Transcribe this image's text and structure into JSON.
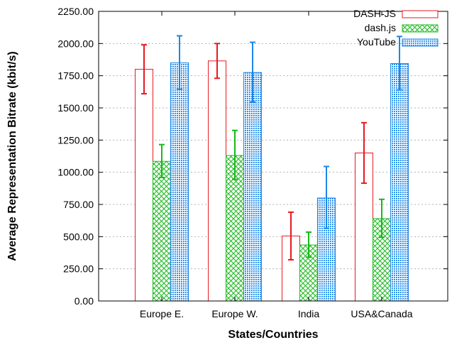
{
  "chart_data": {
    "type": "bar",
    "title": "",
    "xlabel": "States/Countries",
    "ylabel": "Average Representation Bitrate (kbit/s)",
    "ylim": [
      0,
      2250
    ],
    "yticks": [
      "0.00",
      "250.00",
      "500.00",
      "750.00",
      "1000.00",
      "1250.00",
      "1500.00",
      "1750.00",
      "2000.00",
      "2250.00"
    ],
    "categories": [
      "Europe E.",
      "Europe W.",
      "India",
      "USA&Canada"
    ],
    "grid": true,
    "legend_position": "top-right",
    "series": [
      {
        "name": "DASH-JS",
        "color": "#e8191f",
        "pattern": "none",
        "values": [
          1800,
          1865,
          505,
          1150
        ],
        "error_low": [
          1610,
          1730,
          320,
          915
        ],
        "error_high": [
          1990,
          2000,
          690,
          1385
        ]
      },
      {
        "name": "dash.js",
        "color": "#18b81a",
        "pattern": "crosshatch",
        "values": [
          1085,
          1130,
          435,
          640
        ],
        "error_low": [
          960,
          945,
          340,
          495
        ],
        "error_high": [
          1215,
          1325,
          535,
          790
        ]
      },
      {
        "name": "YouTube",
        "color": "#1c86e8",
        "pattern": "dots",
        "values": [
          1850,
          1775,
          800,
          1845
        ],
        "error_low": [
          1645,
          1545,
          565,
          1640
        ],
        "error_high": [
          2060,
          2010,
          1045,
          2055
        ]
      }
    ]
  }
}
